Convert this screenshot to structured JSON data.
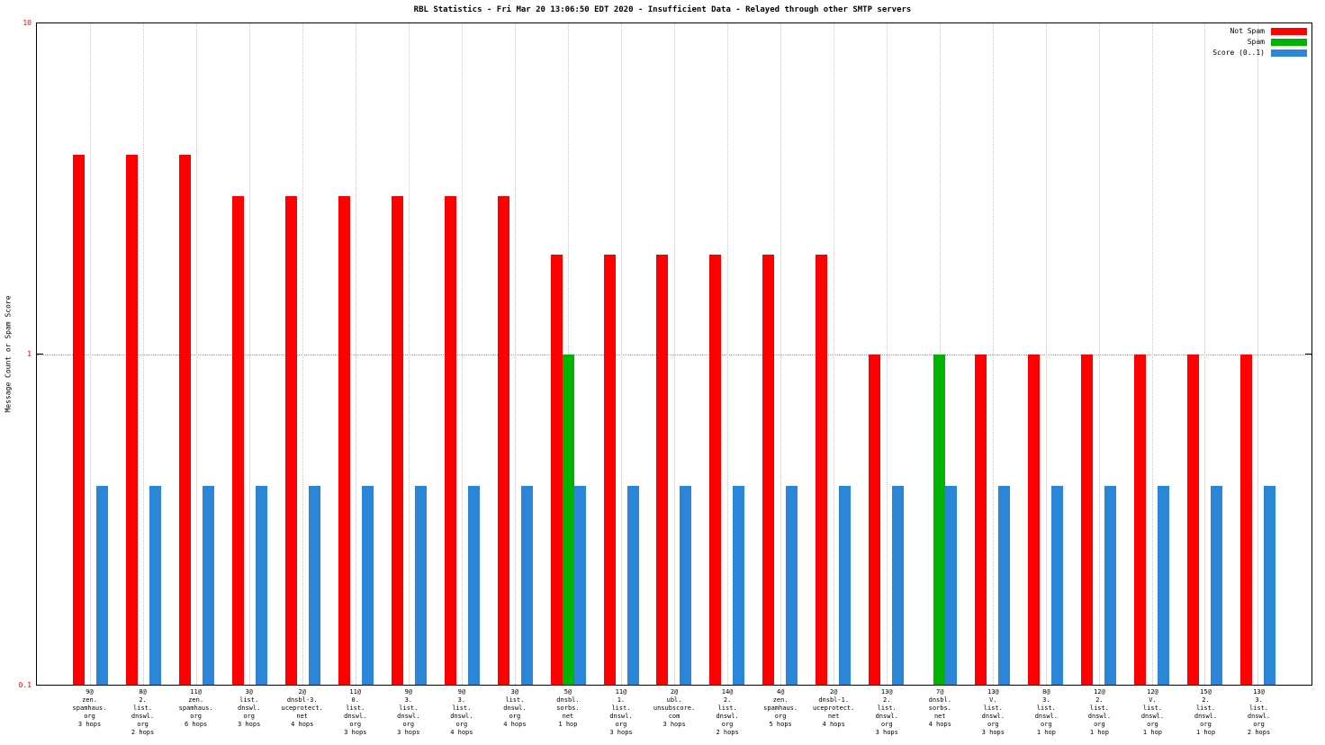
{
  "title": "RBL Statistics - Fri Mar 20 13:06:50 EDT 2020 - Insufficient Data - Relayed through other SMTP servers",
  "y_axis": {
    "label": "Message Count or Spam Score",
    "ticks": [
      "10",
      "1",
      "0.1"
    ],
    "tick_color": "#ff0000"
  },
  "legend": [
    {
      "label": "Not Spam",
      "color": "#ff0000"
    },
    {
      "label": "Spam",
      "color": "#00b400"
    },
    {
      "label": "Score (0..1)",
      "color": "#2b86d8"
    }
  ],
  "chart_data": {
    "type": "bar",
    "scale": "log",
    "ylim": [
      0.1,
      10
    ],
    "grid": {
      "horizontal_line_at": 1,
      "vertical_lines": "at each category center"
    },
    "legend_position": "top-right",
    "title": "RBL Statistics - Fri Mar 20 13:06:50 EDT 2020 - Insufficient Data - Relayed through other SMTP servers",
    "xlabel": "",
    "ylabel": "Message Count or Spam Score",
    "categories": [
      [
        "9@",
        "zen.",
        "spamhaus.",
        "org",
        "3 hops"
      ],
      [
        "8@",
        "2.",
        "list.",
        "dnswl.",
        "org",
        "2 hops"
      ],
      [
        "11@",
        "zen.",
        "spamhaus.",
        "org",
        "6 hops"
      ],
      [
        "3@",
        "list.",
        "dnswl.",
        "org",
        "3 hops"
      ],
      [
        "2@",
        "dnsbl-3.",
        "uceprotect.",
        "net",
        "4 hops"
      ],
      [
        "11@",
        "0.",
        "list.",
        "dnswl.",
        "org",
        "3 hops"
      ],
      [
        "9@",
        "3.",
        "list.",
        "dnswl.",
        "org",
        "3 hops"
      ],
      [
        "9@",
        "3.",
        "list.",
        "dnswl.",
        "org",
        "4 hops"
      ],
      [
        "3@",
        "list.",
        "dnswl.",
        "org",
        "4 hops"
      ],
      [
        "5@",
        "dnsbl.",
        "sorbs.",
        "net",
        "1 hop"
      ],
      [
        "11@",
        "1.",
        "list.",
        "dnswl.",
        "org",
        "3 hops"
      ],
      [
        "2@",
        "ubl.",
        "unsubscore.",
        "com",
        "3 hops"
      ],
      [
        "14@",
        "2.",
        "list.",
        "dnswl.",
        "org",
        "2 hops"
      ],
      [
        "4@",
        "zen.",
        "spamhaus.",
        "org",
        "5 hops"
      ],
      [
        "2@",
        "dnsbl-1.",
        "uceprotect.",
        "net",
        "4 hops"
      ],
      [
        "13@",
        "2.",
        "list.",
        "dnswl.",
        "org",
        "3 hops"
      ],
      [
        "7@",
        "dnsbl.",
        "sorbs.",
        "net",
        "4 hops"
      ],
      [
        "13@",
        "V.",
        "list.",
        "dnswl.",
        "org",
        "3 hops"
      ],
      [
        "8@",
        "3.",
        "list.",
        "dnswl.",
        "org",
        "1 hop"
      ],
      [
        "12@",
        "2.",
        "list.",
        "dnswl.",
        "org",
        "1 hop"
      ],
      [
        "12@",
        "V.",
        "list.",
        "dnswl.",
        "org",
        "1 hop"
      ],
      [
        "15@",
        "2.",
        "list.",
        "dnswl.",
        "org",
        "1 hop"
      ],
      [
        "13@",
        "3.",
        "list.",
        "dnswl.",
        "org",
        "2 hops"
      ]
    ],
    "series": [
      {
        "name": "Not Spam",
        "color": "#ff0000",
        "values": [
          4,
          4,
          4,
          3,
          3,
          3,
          3,
          3,
          3,
          2,
          2,
          2,
          2,
          2,
          2,
          1,
          0,
          1,
          1,
          1,
          1,
          1,
          1
        ]
      },
      {
        "name": "Spam",
        "color": "#00b400",
        "values": [
          0,
          0,
          0,
          0,
          0,
          0,
          0,
          0,
          0,
          1,
          0,
          0,
          0,
          0,
          0,
          0,
          1,
          0,
          0,
          0,
          0,
          0,
          0
        ]
      },
      {
        "name": "Score (0..1)",
        "color": "#2b86d8",
        "values": [
          0.4,
          0.4,
          0.4,
          0.4,
          0.4,
          0.4,
          0.4,
          0.4,
          0.4,
          0.4,
          0.4,
          0.4,
          0.4,
          0.4,
          0.4,
          0.4,
          0.4,
          0.4,
          0.4,
          0.4,
          0.4,
          0.4,
          0.4
        ]
      }
    ]
  }
}
